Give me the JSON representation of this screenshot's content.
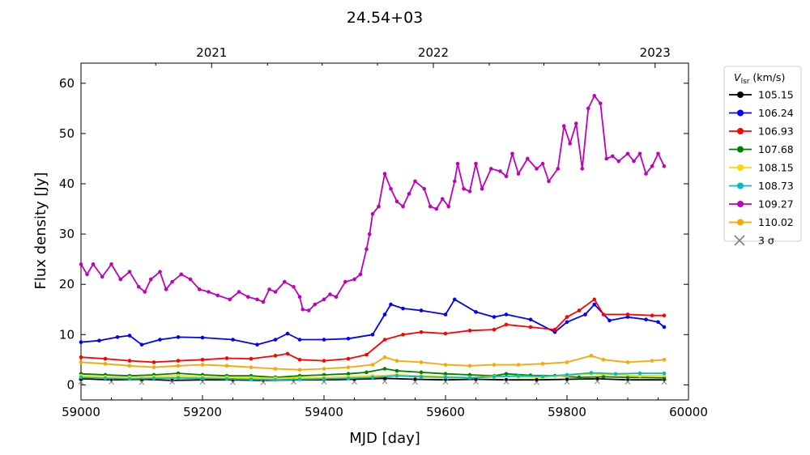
{
  "chart_data": {
    "type": "line",
    "title": "24.54+03",
    "xlabel": "MJD [day]",
    "ylabel": "Flux density [Jy]",
    "xlim": [
      59000,
      60000
    ],
    "ylim": [
      -3,
      64
    ],
    "xticks": [
      "59000",
      "59200",
      "59400",
      "59600",
      "59800",
      "60000"
    ],
    "yticks": [
      "0",
      "10",
      "20",
      "30",
      "40",
      "50",
      "60"
    ],
    "top_axis_ticks": [
      {
        "label": "2021",
        "mjd": 59215
      },
      {
        "label": "2022",
        "mjd": 59580
      },
      {
        "label": "2023",
        "mjd": 59945
      }
    ],
    "legend": {
      "title_main": "V",
      "title_sub": "lsr",
      "title_unit": " (km/s)",
      "placement": "outside-right",
      "sigma_label": "3 σ"
    },
    "series": [
      {
        "name": "105.15",
        "color": "#000000",
        "points": [
          [
            59000,
            1.2
          ],
          [
            59050,
            1.0
          ],
          [
            59100,
            1.1
          ],
          [
            59150,
            0.9
          ],
          [
            59200,
            1.0
          ],
          [
            59250,
            1.0
          ],
          [
            59300,
            0.9
          ],
          [
            59350,
            1.0
          ],
          [
            59400,
            1.0
          ],
          [
            59450,
            1.1
          ],
          [
            59500,
            1.3
          ],
          [
            59550,
            1.1
          ],
          [
            59600,
            1.0
          ],
          [
            59650,
            1.1
          ],
          [
            59700,
            1.0
          ],
          [
            59750,
            1.0
          ],
          [
            59800,
            1.1
          ],
          [
            59850,
            1.2
          ],
          [
            59900,
            1.0
          ],
          [
            59960,
            1.0
          ]
        ]
      },
      {
        "name": "106.24",
        "color": "#0000ff",
        "points": [
          [
            59000,
            8.5
          ],
          [
            59030,
            8.8
          ],
          [
            59060,
            9.5
          ],
          [
            59080,
            9.8
          ],
          [
            59100,
            8.0
          ],
          [
            59130,
            9.0
          ],
          [
            59160,
            9.5
          ],
          [
            59200,
            9.4
          ],
          [
            59250,
            9.0
          ],
          [
            59290,
            8.0
          ],
          [
            59320,
            9.0
          ],
          [
            59340,
            10.2
          ],
          [
            59360,
            9.0
          ],
          [
            59400,
            9.0
          ],
          [
            59440,
            9.2
          ],
          [
            59480,
            10.0
          ],
          [
            59500,
            14.0
          ],
          [
            59510,
            16.0
          ],
          [
            59530,
            15.2
          ],
          [
            59560,
            14.8
          ],
          [
            59600,
            14.0
          ],
          [
            59615,
            17.0
          ],
          [
            59650,
            14.5
          ],
          [
            59680,
            13.5
          ],
          [
            59700,
            14.0
          ],
          [
            59740,
            13.0
          ],
          [
            59780,
            10.5
          ],
          [
            59800,
            12.5
          ],
          [
            59830,
            14.0
          ],
          [
            59845,
            16.0
          ],
          [
            59870,
            12.8
          ],
          [
            59900,
            13.5
          ],
          [
            59930,
            13.0
          ],
          [
            59950,
            12.5
          ],
          [
            59960,
            11.5
          ]
        ]
      },
      {
        "name": "106.93",
        "color": "#ff0000",
        "points": [
          [
            59000,
            5.5
          ],
          [
            59040,
            5.2
          ],
          [
            59080,
            4.8
          ],
          [
            59120,
            4.5
          ],
          [
            59160,
            4.8
          ],
          [
            59200,
            5.0
          ],
          [
            59240,
            5.3
          ],
          [
            59280,
            5.2
          ],
          [
            59320,
            5.8
          ],
          [
            59340,
            6.2
          ],
          [
            59360,
            5.0
          ],
          [
            59400,
            4.8
          ],
          [
            59440,
            5.2
          ],
          [
            59470,
            6.0
          ],
          [
            59500,
            9.0
          ],
          [
            59530,
            10.0
          ],
          [
            59560,
            10.5
          ],
          [
            59600,
            10.2
          ],
          [
            59640,
            10.8
          ],
          [
            59680,
            11.0
          ],
          [
            59700,
            12.0
          ],
          [
            59740,
            11.5
          ],
          [
            59780,
            11.0
          ],
          [
            59800,
            13.5
          ],
          [
            59820,
            14.8
          ],
          [
            59845,
            17.0
          ],
          [
            59860,
            14.0
          ],
          [
            59900,
            14.0
          ],
          [
            59940,
            13.8
          ],
          [
            59960,
            13.8
          ]
        ]
      },
      {
        "name": "107.68",
        "color": "#008000",
        "points": [
          [
            59000,
            2.2
          ],
          [
            59040,
            2.0
          ],
          [
            59080,
            1.8
          ],
          [
            59120,
            2.0
          ],
          [
            59160,
            2.3
          ],
          [
            59200,
            2.0
          ],
          [
            59240,
            1.8
          ],
          [
            59280,
            1.8
          ],
          [
            59320,
            1.5
          ],
          [
            59360,
            1.8
          ],
          [
            59400,
            2.0
          ],
          [
            59440,
            2.2
          ],
          [
            59470,
            2.5
          ],
          [
            59500,
            3.2
          ],
          [
            59520,
            2.8
          ],
          [
            59560,
            2.5
          ],
          [
            59600,
            2.2
          ],
          [
            59640,
            2.0
          ],
          [
            59680,
            1.8
          ],
          [
            59700,
            2.2
          ],
          [
            59740,
            1.9
          ],
          [
            59780,
            1.8
          ],
          [
            59820,
            1.5
          ],
          [
            59860,
            1.6
          ],
          [
            59900,
            1.5
          ],
          [
            59960,
            1.4
          ]
        ]
      },
      {
        "name": "108.15",
        "color": "#ffd700",
        "points": [
          [
            59000,
            1.8
          ],
          [
            59040,
            1.6
          ],
          [
            59080,
            1.5
          ],
          [
            59120,
            1.6
          ],
          [
            59160,
            1.8
          ],
          [
            59200,
            1.6
          ],
          [
            59240,
            1.5
          ],
          [
            59280,
            1.4
          ],
          [
            59320,
            1.3
          ],
          [
            59360,
            1.4
          ],
          [
            59400,
            1.5
          ],
          [
            59440,
            1.6
          ],
          [
            59480,
            1.8
          ],
          [
            59520,
            2.0
          ],
          [
            59560,
            1.8
          ],
          [
            59600,
            1.6
          ],
          [
            59640,
            1.5
          ],
          [
            59680,
            1.7
          ],
          [
            59720,
            1.6
          ],
          [
            59760,
            1.5
          ],
          [
            59800,
            1.8
          ],
          [
            59840,
            2.2
          ],
          [
            59880,
            2.0
          ],
          [
            59920,
            1.8
          ],
          [
            59960,
            1.9
          ]
        ]
      },
      {
        "name": "108.73",
        "color": "#00bfbf",
        "points": [
          [
            59000,
            1.5
          ],
          [
            59040,
            1.3
          ],
          [
            59080,
            1.2
          ],
          [
            59120,
            1.3
          ],
          [
            59160,
            1.4
          ],
          [
            59200,
            1.3
          ],
          [
            59240,
            1.2
          ],
          [
            59280,
            1.1
          ],
          [
            59320,
            1.0
          ],
          [
            59360,
            1.1
          ],
          [
            59400,
            1.2
          ],
          [
            59440,
            1.3
          ],
          [
            59480,
            1.5
          ],
          [
            59520,
            1.8
          ],
          [
            59560,
            1.6
          ],
          [
            59600,
            1.5
          ],
          [
            59640,
            1.4
          ],
          [
            59680,
            1.6
          ],
          [
            59720,
            1.8
          ],
          [
            59760,
            1.7
          ],
          [
            59800,
            2.0
          ],
          [
            59840,
            2.4
          ],
          [
            59880,
            2.2
          ],
          [
            59920,
            2.3
          ],
          [
            59960,
            2.3
          ]
        ]
      },
      {
        "name": "109.27",
        "color": "#bf00bf",
        "points": [
          [
            59000,
            24.0
          ],
          [
            59010,
            22.0
          ],
          [
            59020,
            24.0
          ],
          [
            59035,
            21.5
          ],
          [
            59050,
            24.0
          ],
          [
            59065,
            21.0
          ],
          [
            59080,
            22.5
          ],
          [
            59095,
            19.5
          ],
          [
            59105,
            18.5
          ],
          [
            59115,
            21.0
          ],
          [
            59130,
            22.5
          ],
          [
            59140,
            19.0
          ],
          [
            59150,
            20.5
          ],
          [
            59165,
            22.0
          ],
          [
            59180,
            21.0
          ],
          [
            59195,
            19.0
          ],
          [
            59210,
            18.5
          ],
          [
            59225,
            17.8
          ],
          [
            59245,
            17.0
          ],
          [
            59260,
            18.5
          ],
          [
            59275,
            17.5
          ],
          [
            59290,
            17.0
          ],
          [
            59300,
            16.5
          ],
          [
            59310,
            19.0
          ],
          [
            59320,
            18.5
          ],
          [
            59335,
            20.5
          ],
          [
            59350,
            19.5
          ],
          [
            59360,
            17.5
          ],
          [
            59365,
            15.0
          ],
          [
            59375,
            14.8
          ],
          [
            59385,
            16.0
          ],
          [
            59400,
            17.0
          ],
          [
            59410,
            18.0
          ],
          [
            59420,
            17.5
          ],
          [
            59435,
            20.5
          ],
          [
            59450,
            21.0
          ],
          [
            59460,
            22.0
          ],
          [
            59470,
            27.0
          ],
          [
            59475,
            30.0
          ],
          [
            59480,
            34.0
          ],
          [
            59490,
            35.5
          ],
          [
            59500,
            42.0
          ],
          [
            59510,
            39.0
          ],
          [
            59520,
            36.5
          ],
          [
            59530,
            35.5
          ],
          [
            59540,
            38.0
          ],
          [
            59550,
            40.5
          ],
          [
            59565,
            39.0
          ],
          [
            59575,
            35.5
          ],
          [
            59585,
            35.0
          ],
          [
            59595,
            37.0
          ],
          [
            59605,
            35.5
          ],
          [
            59615,
            40.5
          ],
          [
            59620,
            44.0
          ],
          [
            59630,
            39.0
          ],
          [
            59640,
            38.5
          ],
          [
            59650,
            44.0
          ],
          [
            59660,
            39.0
          ],
          [
            59675,
            43.0
          ],
          [
            59690,
            42.5
          ],
          [
            59700,
            41.5
          ],
          [
            59710,
            46.0
          ],
          [
            59720,
            42.0
          ],
          [
            59735,
            45.0
          ],
          [
            59750,
            43.0
          ],
          [
            59760,
            44.0
          ],
          [
            59770,
            40.5
          ],
          [
            59785,
            43.0
          ],
          [
            59795,
            51.5
          ],
          [
            59805,
            48.0
          ],
          [
            59815,
            52.0
          ],
          [
            59825,
            43.0
          ],
          [
            59835,
            55.0
          ],
          [
            59845,
            57.5
          ],
          [
            59855,
            56.0
          ],
          [
            59865,
            45.0
          ],
          [
            59875,
            45.5
          ],
          [
            59885,
            44.5
          ],
          [
            59900,
            46.0
          ],
          [
            59910,
            44.5
          ],
          [
            59920,
            46.0
          ],
          [
            59930,
            42.0
          ],
          [
            59940,
            43.5
          ],
          [
            59950,
            46.0
          ],
          [
            59960,
            43.5
          ]
        ]
      },
      {
        "name": "110.02",
        "color": "#ffa500",
        "points": [
          [
            59000,
            4.5
          ],
          [
            59040,
            4.2
          ],
          [
            59080,
            3.8
          ],
          [
            59120,
            3.5
          ],
          [
            59160,
            3.8
          ],
          [
            59200,
            4.0
          ],
          [
            59240,
            3.8
          ],
          [
            59280,
            3.5
          ],
          [
            59320,
            3.2
          ],
          [
            59360,
            3.0
          ],
          [
            59400,
            3.2
          ],
          [
            59440,
            3.5
          ],
          [
            59480,
            4.0
          ],
          [
            59500,
            5.5
          ],
          [
            59520,
            4.8
          ],
          [
            59560,
            4.5
          ],
          [
            59600,
            4.0
          ],
          [
            59640,
            3.8
          ],
          [
            59680,
            4.0
          ],
          [
            59720,
            4.0
          ],
          [
            59760,
            4.2
          ],
          [
            59800,
            4.5
          ],
          [
            59840,
            5.8
          ],
          [
            59860,
            5.0
          ],
          [
            59900,
            4.5
          ],
          [
            59940,
            4.8
          ],
          [
            59960,
            5.0
          ]
        ]
      },
      {
        "name": "3 σ",
        "color": "#808080",
        "marker": "x",
        "points": [
          [
            59000,
            0.6
          ],
          [
            59050,
            0.6
          ],
          [
            59100,
            0.5
          ],
          [
            59150,
            0.6
          ],
          [
            59200,
            0.6
          ],
          [
            59250,
            0.5
          ],
          [
            59300,
            0.5
          ],
          [
            59350,
            0.6
          ],
          [
            59400,
            0.6
          ],
          [
            59450,
            0.6
          ],
          [
            59500,
            0.7
          ],
          [
            59550,
            0.6
          ],
          [
            59600,
            0.6
          ],
          [
            59650,
            0.6
          ],
          [
            59700,
            0.6
          ],
          [
            59750,
            0.5
          ],
          [
            59800,
            0.6
          ],
          [
            59850,
            0.7
          ],
          [
            59900,
            0.6
          ],
          [
            59960,
            0.6
          ]
        ]
      }
    ]
  }
}
